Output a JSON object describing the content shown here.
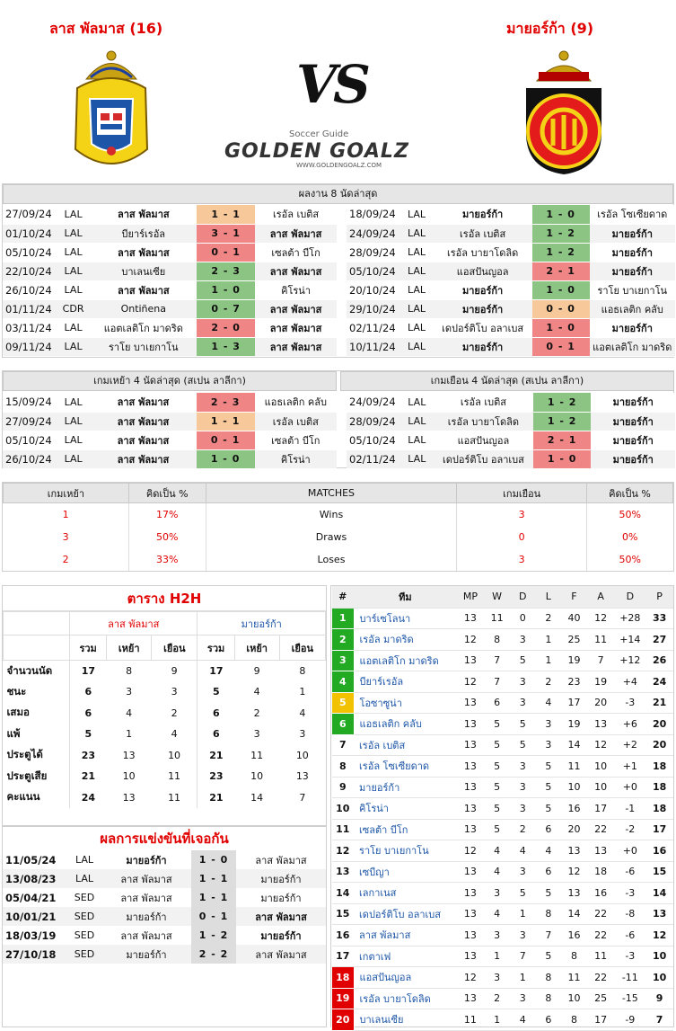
{
  "home_title": "ลาส พัลมาส (16)",
  "away_title": "มายอร์ก้า (9)",
  "vs": "VS",
  "brand": {
    "tag": "Soccer Guide",
    "name": "GOLDEN GOALZ",
    "url": "WWW.GOLDENGOALZ.COM"
  },
  "colors": {
    "win": "#8cc484",
    "loss": "#ef8585",
    "draw": "#f6c89a",
    "red": "#e10000",
    "green_pos": "#22aa22"
  },
  "last8": {
    "title": "ผลงาน 8 นัดล่าสุด",
    "home": [
      [
        "27/09/24",
        "LAL",
        "ลาส พัลมาส",
        "1 - 1",
        "เรอัล เบติส",
        "draw",
        "home"
      ],
      [
        "01/10/24",
        "LAL",
        "บียาร์เรอัล",
        "3 - 1",
        "ลาส พัลมาส",
        "loss",
        "away"
      ],
      [
        "05/10/24",
        "LAL",
        "ลาส พัลมาส",
        "0 - 1",
        "เซลต้า บีโก",
        "loss",
        "home"
      ],
      [
        "22/10/24",
        "LAL",
        "บาเลนเซีย",
        "2 - 3",
        "ลาส พัลมาส",
        "win",
        "away"
      ],
      [
        "26/10/24",
        "LAL",
        "ลาส พัลมาส",
        "1 - 0",
        "คิโรน่า",
        "win",
        "home"
      ],
      [
        "01/11/24",
        "CDR",
        "Ontiñena",
        "0 - 7",
        "ลาส พัลมาส",
        "win",
        "away"
      ],
      [
        "03/11/24",
        "LAL",
        "แอตเลติโก มาดริด",
        "2 - 0",
        "ลาส พัลมาส",
        "loss",
        "away"
      ],
      [
        "09/11/24",
        "LAL",
        "ราโย บาเยกาโน",
        "1 - 3",
        "ลาส พัลมาส",
        "win",
        "away"
      ]
    ],
    "away": [
      [
        "18/09/24",
        "LAL",
        "มายอร์ก้า",
        "1 - 0",
        "เรอัล โซเซียดาด",
        "win",
        "home"
      ],
      [
        "24/09/24",
        "LAL",
        "เรอัล เบติส",
        "1 - 2",
        "มายอร์ก้า",
        "win",
        "away"
      ],
      [
        "28/09/24",
        "LAL",
        "เรอัล บายาโดลิด",
        "1 - 2",
        "มายอร์ก้า",
        "win",
        "away"
      ],
      [
        "05/10/24",
        "LAL",
        "แอสปันญอล",
        "2 - 1",
        "มายอร์ก้า",
        "loss",
        "away"
      ],
      [
        "20/10/24",
        "LAL",
        "มายอร์ก้า",
        "1 - 0",
        "ราโย บาเยกาโน",
        "win",
        "home"
      ],
      [
        "29/10/24",
        "LAL",
        "มายอร์ก้า",
        "0 - 0",
        "แอธเลติก คลับ",
        "draw",
        "home"
      ],
      [
        "02/11/24",
        "LAL",
        "เดปอร์ติโบ อลาเบส",
        "1 - 0",
        "มายอร์ก้า",
        "loss",
        "away"
      ],
      [
        "10/11/24",
        "LAL",
        "มายอร์ก้า",
        "0 - 1",
        "แอตเลติโก มาดริด",
        "loss",
        "home"
      ]
    ]
  },
  "last4": {
    "home_title": "เกมเหย้า 4 นัดล่าสุด (สเปน ลาลีกา)",
    "away_title": "เกมเยือน 4 นัดล่าสุด (สเปน ลาลีกา)",
    "home": [
      [
        "15/09/24",
        "LAL",
        "ลาส พัลมาส",
        "2 - 3",
        "แอธเลติก คลับ",
        "loss",
        "home"
      ],
      [
        "27/09/24",
        "LAL",
        "ลาส พัลมาส",
        "1 - 1",
        "เรอัล เบติส",
        "draw",
        "home"
      ],
      [
        "05/10/24",
        "LAL",
        "ลาส พัลมาส",
        "0 - 1",
        "เซลต้า บีโก",
        "loss",
        "home"
      ],
      [
        "26/10/24",
        "LAL",
        "ลาส พัลมาส",
        "1 - 0",
        "คิโรน่า",
        "win",
        "home"
      ]
    ],
    "away": [
      [
        "24/09/24",
        "LAL",
        "เรอัล เบติส",
        "1 - 2",
        "มายอร์ก้า",
        "win",
        "away"
      ],
      [
        "28/09/24",
        "LAL",
        "เรอัล บายาโดลิด",
        "1 - 2",
        "มายอร์ก้า",
        "win",
        "away"
      ],
      [
        "05/10/24",
        "LAL",
        "แอสปันญอล",
        "2 - 1",
        "มายอร์ก้า",
        "loss",
        "away"
      ],
      [
        "02/11/24",
        "LAL",
        "เดปอร์ติโบ อลาเบส",
        "1 - 0",
        "มายอร์ก้า",
        "loss",
        "away"
      ]
    ]
  },
  "summary": {
    "headers": [
      "เกมเหย้า",
      "คิดเป็น %",
      "MATCHES",
      "เกมเยือน",
      "คิดเป็น %"
    ],
    "rows": [
      [
        "1",
        "17%",
        "Wins",
        "3",
        "50%"
      ],
      [
        "3",
        "50%",
        "Draws",
        "0",
        "0%"
      ],
      [
        "2",
        "33%",
        "Loses",
        "3",
        "50%"
      ]
    ]
  },
  "h2h": {
    "title": "ตาราง H2H",
    "home": "ลาส พัลมาส",
    "away": "มายอร์ก้า",
    "cols": [
      "รวม",
      "เหย้า",
      "เยือน",
      "รวม",
      "เหย้า",
      "เยือน"
    ],
    "rows": [
      [
        "จำนวนนัด",
        "17",
        "8",
        "9",
        "17",
        "9",
        "8"
      ],
      [
        "ชนะ",
        "6",
        "3",
        "3",
        "5",
        "4",
        "1"
      ],
      [
        "เสมอ",
        "6",
        "4",
        "2",
        "6",
        "2",
        "4"
      ],
      [
        "แพ้",
        "5",
        "1",
        "4",
        "6",
        "3",
        "3"
      ],
      [
        "ประตูได้",
        "23",
        "13",
        "10",
        "21",
        "11",
        "10"
      ],
      [
        "ประตูเสีย",
        "21",
        "10",
        "11",
        "23",
        "10",
        "13"
      ],
      [
        "คะแนน",
        "24",
        "13",
        "11",
        "21",
        "14",
        "7"
      ]
    ]
  },
  "meetings": {
    "title": "ผลการแข่งขันที่เจอกัน",
    "rows": [
      [
        "11/05/24",
        "LAL",
        "มายอร์ก้า",
        "1 - 0",
        "ลาส พัลมาส",
        "home"
      ],
      [
        "13/08/23",
        "LAL",
        "ลาส พัลมาส",
        "1 - 1",
        "มายอร์ก้า",
        "none"
      ],
      [
        "05/04/21",
        "SED",
        "ลาส พัลมาส",
        "1 - 1",
        "มายอร์ก้า",
        "none"
      ],
      [
        "10/01/21",
        "SED",
        "มายอร์ก้า",
        "0 - 1",
        "ลาส พัลมาส",
        "away"
      ],
      [
        "18/03/19",
        "SED",
        "ลาส พัลมาส",
        "1 - 2",
        "มายอร์ก้า",
        "away"
      ],
      [
        "27/10/18",
        "SED",
        "มายอร์ก้า",
        "2 - 2",
        "ลาส พัลมาส",
        "none"
      ]
    ]
  },
  "standings": {
    "headers": [
      "#",
      "ทีม",
      "MP",
      "W",
      "D",
      "L",
      "F",
      "A",
      "D",
      "P"
    ],
    "rows": [
      [
        "1",
        "บาร์เซโลนา",
        "13",
        "11",
        "0",
        "2",
        "40",
        "12",
        "+28",
        "33",
        "green"
      ],
      [
        "2",
        "เรอัล มาดริด",
        "12",
        "8",
        "3",
        "1",
        "25",
        "11",
        "+14",
        "27",
        "green"
      ],
      [
        "3",
        "แอตเลติโก มาดริด",
        "13",
        "7",
        "5",
        "1",
        "19",
        "7",
        "+12",
        "26",
        "green"
      ],
      [
        "4",
        "บียาร์เรอัล",
        "12",
        "7",
        "3",
        "2",
        "23",
        "19",
        "+4",
        "24",
        "green"
      ],
      [
        "5",
        "โอซาซูน่า",
        "13",
        "6",
        "3",
        "4",
        "17",
        "20",
        "-3",
        "21",
        "yellow"
      ],
      [
        "6",
        "แอธเลติก คลับ",
        "13",
        "5",
        "5",
        "3",
        "19",
        "13",
        "+6",
        "20",
        "green"
      ],
      [
        "7",
        "เรอัล เบติส",
        "13",
        "5",
        "5",
        "3",
        "14",
        "12",
        "+2",
        "20",
        "none"
      ],
      [
        "8",
        "เรอัล โซเซียดาด",
        "13",
        "5",
        "3",
        "5",
        "11",
        "10",
        "+1",
        "18",
        "none"
      ],
      [
        "9",
        "มายอร์ก้า",
        "13",
        "5",
        "3",
        "5",
        "10",
        "10",
        "+0",
        "18",
        "none"
      ],
      [
        "10",
        "คิโรน่า",
        "13",
        "5",
        "3",
        "5",
        "16",
        "17",
        "-1",
        "18",
        "none"
      ],
      [
        "11",
        "เซลต้า บีโก",
        "13",
        "5",
        "2",
        "6",
        "20",
        "22",
        "-2",
        "17",
        "none"
      ],
      [
        "12",
        "ราโย บาเยกาโน",
        "12",
        "4",
        "4",
        "4",
        "13",
        "13",
        "+0",
        "16",
        "none"
      ],
      [
        "13",
        "เซบีญา",
        "13",
        "4",
        "3",
        "6",
        "12",
        "18",
        "-6",
        "15",
        "none"
      ],
      [
        "14",
        "เลกาเนส",
        "13",
        "3",
        "5",
        "5",
        "13",
        "16",
        "-3",
        "14",
        "none"
      ],
      [
        "15",
        "เดปอร์ติโบ อลาเบส",
        "13",
        "4",
        "1",
        "8",
        "14",
        "22",
        "-8",
        "13",
        "none"
      ],
      [
        "16",
        "ลาส พัลมาส",
        "13",
        "3",
        "3",
        "7",
        "16",
        "22",
        "-6",
        "12",
        "none"
      ],
      [
        "17",
        "เกตาเฟ",
        "13",
        "1",
        "7",
        "5",
        "8",
        "11",
        "-3",
        "10",
        "none"
      ],
      [
        "18",
        "แอสปันญอล",
        "12",
        "3",
        "1",
        "8",
        "11",
        "22",
        "-11",
        "10",
        "red"
      ],
      [
        "19",
        "เรอัล บายาโดลิด",
        "13",
        "2",
        "3",
        "8",
        "10",
        "25",
        "-15",
        "9",
        "red"
      ],
      [
        "20",
        "บาเลนเซีย",
        "11",
        "1",
        "4",
        "6",
        "8",
        "17",
        "-9",
        "7",
        "red"
      ]
    ]
  }
}
